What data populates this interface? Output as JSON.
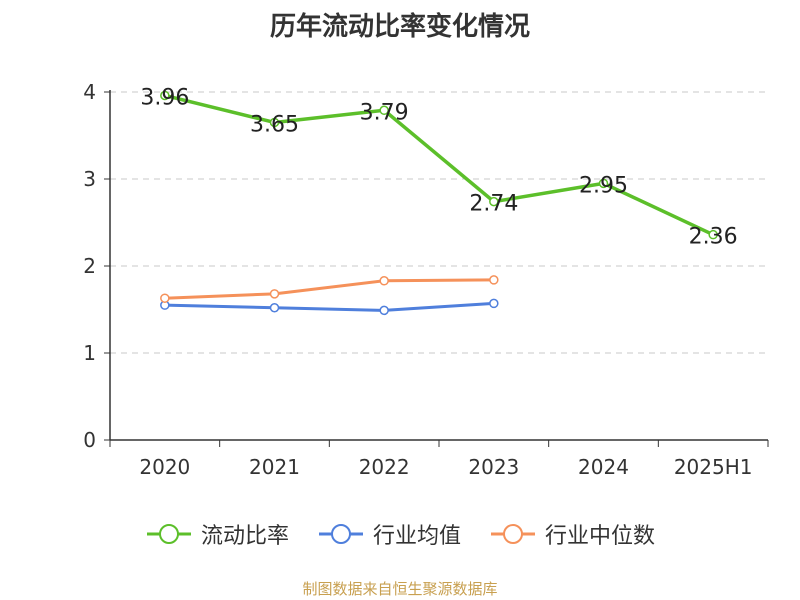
{
  "chart_data": {
    "type": "line",
    "title": "历年流动比率变化情况",
    "xlabel": "",
    "ylabel": "",
    "ylim": [
      0,
      4
    ],
    "yticks": [
      "0",
      "1",
      "2",
      "3",
      "4"
    ],
    "categories": [
      "2020",
      "2021",
      "2022",
      "2023",
      "2024",
      "2025H1"
    ],
    "grid": true,
    "legend_position": "bottom",
    "series": [
      {
        "name": "流动比率",
        "color": "#5cbf2a",
        "values": [
          3.96,
          3.65,
          3.79,
          2.74,
          2.95,
          2.36
        ],
        "labels": [
          "3.96",
          "3.65",
          "3.79",
          "2.74",
          "2.95",
          "2.36"
        ]
      },
      {
        "name": "行业均值",
        "color": "#4f7fdc",
        "values": [
          1.55,
          1.52,
          1.49,
          1.57,
          null,
          null
        ]
      },
      {
        "name": "行业中位数",
        "color": "#f5915a",
        "values": [
          1.63,
          1.68,
          1.83,
          1.84,
          null,
          null
        ]
      }
    ]
  },
  "footer": {
    "source": "制图数据来自恒生聚源数据库"
  }
}
